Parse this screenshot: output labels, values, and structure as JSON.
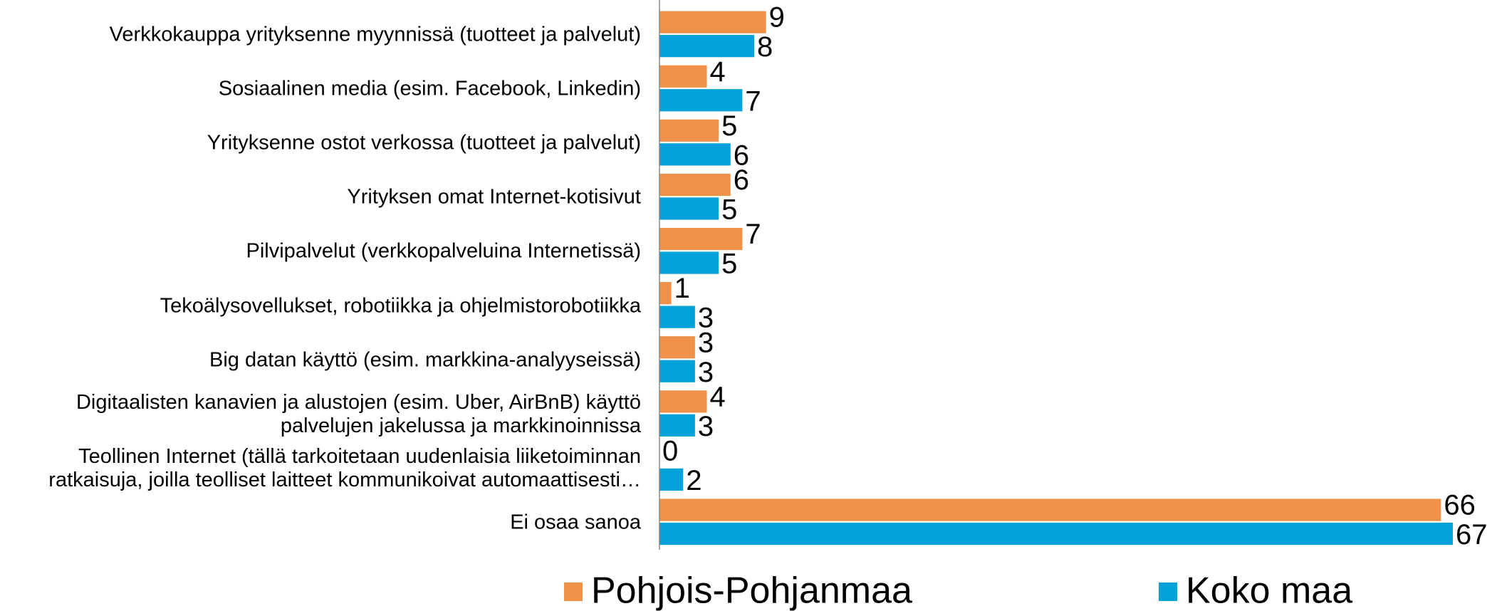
{
  "chart_data": {
    "type": "hbar",
    "categories": [
      "Verkkokauppa yrityksenne myynnissä (tuotteet ja palvelut)",
      "Sosiaalinen media (esim. Facebook, Linkedin)",
      "Yrityksenne ostot verkossa (tuotteet ja palvelut)",
      "Yrityksen omat Internet-kotisivut",
      "Pilvipalvelut  (verkkopalveluina Internetissä)",
      "Tekoälysovellukset, robotiikka ja ohjelmistorobotiikka",
      "Big datan käyttö (esim. markkina-analyyseissä)",
      "Digitaalisten kanavien ja alustojen (esim. Uber, AirBnB) käyttö\npalvelujen jakelussa ja markkinoinnissa",
      "Teollinen Internet (tällä tarkoitetaan uudenlaisia liiketoiminnan\nratkaisuja, joilla teolliset laitteet kommunikoivat automaattisesti…",
      "Ei osaa sanoa"
    ],
    "series": [
      {
        "name": "Pohjois-Pohjanmaa",
        "color": "#f0914a",
        "values": [
          9,
          4,
          5,
          6,
          7,
          1,
          3,
          4,
          0,
          66
        ]
      },
      {
        "name": "Koko maa",
        "color": "#00a2d9",
        "values": [
          8,
          7,
          6,
          5,
          5,
          3,
          3,
          3,
          2,
          67
        ]
      }
    ],
    "xlim": [
      0,
      67
    ],
    "legend": "bottom"
  }
}
